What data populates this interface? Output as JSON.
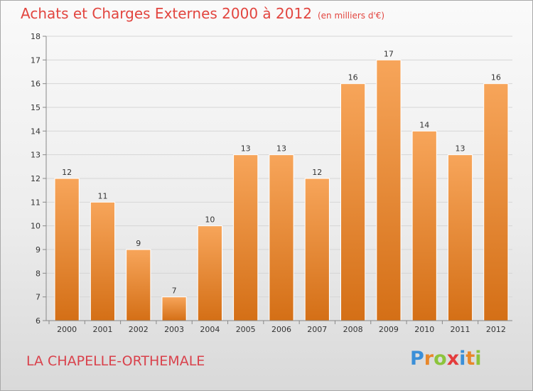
{
  "title": {
    "main": "Achats et Charges Externes 2000 à 2012",
    "unit": "(en milliers d'€)"
  },
  "location": "LA CHAPELLE-ORTHEMALE",
  "brand": {
    "letters": [
      "P",
      "r",
      "o",
      "x",
      "i",
      "t",
      "i"
    ],
    "colors": [
      "#3a8fd8",
      "#e8872a",
      "#8cc43c",
      "#e43c3c",
      "#3a8fd8",
      "#e8872a",
      "#8cc43c"
    ]
  },
  "colors": {
    "bar_top": "#f7a55a",
    "bar_bottom": "#d46f16",
    "title": "#e2453f",
    "location": "#d9414b",
    "grid": "#d6d6d6"
  },
  "chart_data": {
    "type": "bar",
    "categories": [
      "2000",
      "2001",
      "2002",
      "2003",
      "2004",
      "2005",
      "2006",
      "2007",
      "2008",
      "2009",
      "2010",
      "2011",
      "2012"
    ],
    "values": [
      12,
      11,
      9,
      7,
      10,
      13,
      13,
      12,
      16,
      17,
      14,
      13,
      16
    ],
    "title": "Achats et Charges Externes 2000 à 2012",
    "ylim": [
      6,
      18
    ],
    "yticks": [
      6,
      7,
      8,
      9,
      10,
      11,
      12,
      13,
      14,
      15,
      16,
      17,
      18
    ],
    "grid": true
  }
}
